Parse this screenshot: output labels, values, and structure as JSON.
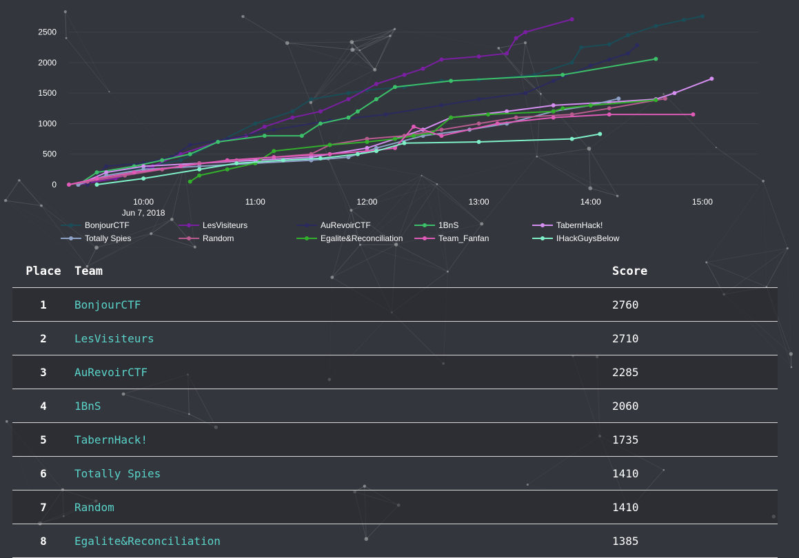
{
  "chart_data": {
    "type": "line",
    "x_axis": {
      "date_label": "Jun 7, 2018",
      "ticks": [
        "10:00",
        "11:00",
        "12:00",
        "13:00",
        "14:00",
        "15:00"
      ],
      "range": [
        "09:20",
        "15:30"
      ]
    },
    "y_axis": {
      "ticks": [
        0,
        500,
        1000,
        1500,
        2000,
        2500
      ],
      "range": [
        0,
        2800
      ]
    },
    "legend_placement": "bottom",
    "grid": true,
    "series": [
      {
        "name": "BonjourCTF",
        "color": "#1a4d57",
        "points": [
          [
            "09:25",
            0
          ],
          [
            "09:40",
            200
          ],
          [
            "10:00",
            280
          ],
          [
            "10:20",
            400
          ],
          [
            "10:40",
            700
          ],
          [
            "11:00",
            1000
          ],
          [
            "11:20",
            1200
          ],
          [
            "11:30",
            1400
          ],
          [
            "11:50",
            1500
          ],
          [
            "12:00",
            1550
          ],
          [
            "12:20",
            1600
          ],
          [
            "12:40",
            1700
          ],
          [
            "13:00",
            1720
          ],
          [
            "13:30",
            1800
          ],
          [
            "13:50",
            2000
          ],
          [
            "13:55",
            2250
          ],
          [
            "14:10",
            2300
          ],
          [
            "14:20",
            2450
          ],
          [
            "14:35",
            2600
          ],
          [
            "14:50",
            2700
          ],
          [
            "15:00",
            2760
          ]
        ]
      },
      {
        "name": "LesVisiteurs",
        "color": "#7a1fa2",
        "points": [
          [
            "09:25",
            0
          ],
          [
            "09:45",
            100
          ],
          [
            "10:05",
            300
          ],
          [
            "10:20",
            500
          ],
          [
            "10:40",
            700
          ],
          [
            "10:55",
            800
          ],
          [
            "11:05",
            950
          ],
          [
            "11:20",
            1100
          ],
          [
            "11:35",
            1200
          ],
          [
            "11:50",
            1400
          ],
          [
            "12:05",
            1650
          ],
          [
            "12:20",
            1800
          ],
          [
            "12:30",
            1900
          ],
          [
            "12:40",
            2050
          ],
          [
            "13:00",
            2100
          ],
          [
            "13:15",
            2150
          ],
          [
            "13:20",
            2400
          ],
          [
            "13:25",
            2500
          ],
          [
            "13:50",
            2710
          ]
        ]
      },
      {
        "name": "AuRevoirCTF",
        "color": "#2b2a5e",
        "points": [
          [
            "09:30",
            0
          ],
          [
            "09:40",
            300
          ],
          [
            "10:00",
            350
          ],
          [
            "10:15",
            450
          ],
          [
            "10:25",
            650
          ],
          [
            "10:45",
            750
          ],
          [
            "11:10",
            900
          ],
          [
            "11:40",
            1050
          ],
          [
            "12:10",
            1150
          ],
          [
            "12:40",
            1300
          ],
          [
            "13:00",
            1400
          ],
          [
            "13:25",
            1500
          ],
          [
            "13:40",
            1700
          ],
          [
            "14:00",
            1950
          ],
          [
            "14:10",
            2050
          ],
          [
            "14:20",
            2150
          ],
          [
            "14:25",
            2285
          ]
        ]
      },
      {
        "name": "1BnS",
        "color": "#3cc06a",
        "points": [
          [
            "09:25",
            0
          ],
          [
            "09:35",
            200
          ],
          [
            "09:55",
            300
          ],
          [
            "10:10",
            400
          ],
          [
            "10:25",
            500
          ],
          [
            "10:40",
            700
          ],
          [
            "11:05",
            800
          ],
          [
            "11:25",
            800
          ],
          [
            "11:35",
            1000
          ],
          [
            "11:50",
            1100
          ],
          [
            "11:55",
            1200
          ],
          [
            "12:05",
            1400
          ],
          [
            "12:15",
            1600
          ],
          [
            "12:45",
            1700
          ],
          [
            "13:45",
            1800
          ],
          [
            "14:35",
            2060
          ]
        ]
      },
      {
        "name": "TabernHack!",
        "color": "#d48ff0",
        "points": [
          [
            "09:25",
            0
          ],
          [
            "09:40",
            200
          ],
          [
            "10:00",
            300
          ],
          [
            "10:30",
            350
          ],
          [
            "11:00",
            400
          ],
          [
            "11:30",
            450
          ],
          [
            "12:00",
            600
          ],
          [
            "12:30",
            900
          ],
          [
            "12:45",
            1100
          ],
          [
            "13:15",
            1200
          ],
          [
            "13:40",
            1300
          ],
          [
            "14:10",
            1350
          ],
          [
            "14:35",
            1400
          ],
          [
            "14:45",
            1500
          ],
          [
            "15:05",
            1735
          ]
        ]
      },
      {
        "name": "Totally Spies",
        "color": "#8ea2c8",
        "points": [
          [
            "09:25",
            0
          ],
          [
            "09:40",
            150
          ],
          [
            "10:00",
            250
          ],
          [
            "10:30",
            300
          ],
          [
            "11:00",
            350
          ],
          [
            "11:30",
            400
          ],
          [
            "11:50",
            450
          ],
          [
            "12:05",
            600
          ],
          [
            "12:30",
            800
          ],
          [
            "12:55",
            900
          ],
          [
            "13:15",
            1000
          ],
          [
            "13:40",
            1200
          ],
          [
            "14:00",
            1300
          ],
          [
            "14:15",
            1410
          ]
        ]
      },
      {
        "name": "Random",
        "color": "#b85c8f",
        "points": [
          [
            "09:20",
            0
          ],
          [
            "09:30",
            50
          ],
          [
            "09:50",
            150
          ],
          [
            "10:10",
            250
          ],
          [
            "10:30",
            350
          ],
          [
            "10:50",
            400
          ],
          [
            "11:10",
            450
          ],
          [
            "11:30",
            500
          ],
          [
            "11:40",
            650
          ],
          [
            "12:00",
            750
          ],
          [
            "12:20",
            800
          ],
          [
            "12:40",
            900
          ],
          [
            "13:00",
            1000
          ],
          [
            "13:20",
            1100
          ],
          [
            "13:50",
            1150
          ],
          [
            "14:10",
            1250
          ],
          [
            "14:40",
            1410
          ]
        ]
      },
      {
        "name": "Egalite&Reconciliation",
        "color": "#33b02c",
        "points": [
          [
            "10:25",
            50
          ],
          [
            "10:30",
            150
          ],
          [
            "10:45",
            250
          ],
          [
            "11:00",
            350
          ],
          [
            "11:10",
            550
          ],
          [
            "11:40",
            650
          ],
          [
            "12:00",
            700
          ],
          [
            "12:15",
            750
          ],
          [
            "12:25",
            800
          ],
          [
            "12:35",
            850
          ],
          [
            "12:45",
            1100
          ],
          [
            "13:05",
            1150
          ],
          [
            "13:40",
            1200
          ],
          [
            "13:45",
            1250
          ],
          [
            "14:00",
            1300
          ],
          [
            "14:35",
            1385
          ]
        ]
      },
      {
        "name": "Team_Fanfan",
        "color": "#e05bb8",
        "points": [
          [
            "09:20",
            0
          ],
          [
            "09:35",
            100
          ],
          [
            "09:55",
            200
          ],
          [
            "10:20",
            300
          ],
          [
            "10:45",
            400
          ],
          [
            "11:10",
            450
          ],
          [
            "11:40",
            500
          ],
          [
            "12:00",
            550
          ],
          [
            "12:15",
            600
          ],
          [
            "12:25",
            950
          ],
          [
            "12:40",
            800
          ],
          [
            "13:10",
            1000
          ],
          [
            "13:40",
            1100
          ],
          [
            "14:10",
            1150
          ],
          [
            "14:55",
            1150
          ]
        ]
      },
      {
        "name": "IHackGuysBelow",
        "color": "#7ff0c8",
        "points": [
          [
            "09:35",
            0
          ],
          [
            "10:00",
            100
          ],
          [
            "10:30",
            250
          ],
          [
            "10:50",
            350
          ],
          [
            "11:15",
            400
          ],
          [
            "11:35",
            430
          ],
          [
            "11:55",
            500
          ],
          [
            "12:05",
            550
          ],
          [
            "12:20",
            680
          ],
          [
            "13:00",
            700
          ],
          [
            "13:50",
            750
          ],
          [
            "14:05",
            830
          ]
        ]
      }
    ]
  },
  "table": {
    "headers": {
      "place": "Place",
      "team": "Team",
      "score": "Score"
    },
    "rows": [
      {
        "place": "1",
        "team": "BonjourCTF",
        "score": "2760"
      },
      {
        "place": "2",
        "team": "LesVisiteurs",
        "score": "2710"
      },
      {
        "place": "3",
        "team": "AuRevoirCTF",
        "score": "2285"
      },
      {
        "place": "4",
        "team": "1BnS",
        "score": "2060"
      },
      {
        "place": "5",
        "team": "TabernHack!",
        "score": "1735"
      },
      {
        "place": "6",
        "team": "Totally Spies",
        "score": "1410"
      },
      {
        "place": "7",
        "team": "Random",
        "score": "1410"
      },
      {
        "place": "8",
        "team": "Egalite&Reconciliation",
        "score": "1385"
      }
    ]
  },
  "colors": {
    "background": "#33363d",
    "team_link": "#5ad4c9",
    "row_border": "#d8d8d8"
  }
}
